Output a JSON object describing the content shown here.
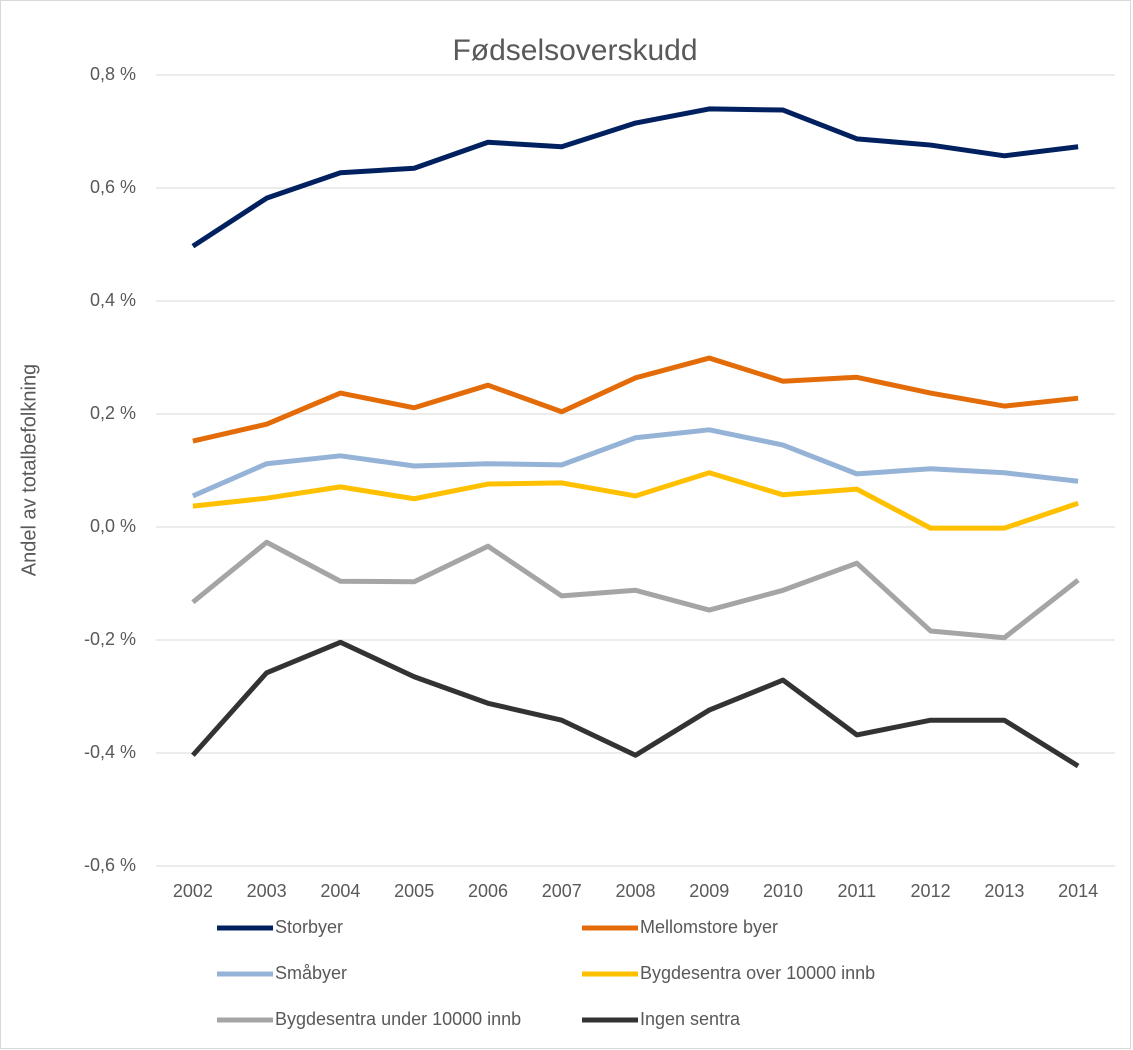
{
  "chart_data": {
    "type": "line",
    "title": "Fødselsoverskudd",
    "y_label": "Andel av totalbefolkning",
    "categories": [
      "2002",
      "2003",
      "2004",
      "2005",
      "2006",
      "2007",
      "2008",
      "2009",
      "2010",
      "2011",
      "2012",
      "2013",
      "2014"
    ],
    "series": [
      {
        "name": "Storbyer",
        "color": "#002060",
        "values": [
          0.497,
          0.582,
          0.627,
          0.635,
          0.681,
          0.673,
          0.715,
          0.74,
          0.738,
          0.687,
          0.676,
          0.657,
          0.673
        ]
      },
      {
        "name": "Mellomstore byer",
        "color": "#e36c09",
        "values": [
          0.152,
          0.182,
          0.237,
          0.211,
          0.251,
          0.204,
          0.264,
          0.299,
          0.258,
          0.265,
          0.237,
          0.214,
          0.228
        ]
      },
      {
        "name": "Småbyer",
        "color": "#95b3d7",
        "values": [
          0.055,
          0.112,
          0.126,
          0.108,
          0.112,
          0.11,
          0.158,
          0.172,
          0.145,
          0.094,
          0.103,
          0.096,
          0.081
        ]
      },
      {
        "name": "Bygdesentra over 10000 innb",
        "color": "#ffc000",
        "values": [
          0.037,
          0.051,
          0.071,
          0.05,
          0.076,
          0.078,
          0.055,
          0.096,
          0.057,
          0.067,
          -0.002,
          -0.002,
          0.042
        ]
      },
      {
        "name": "Bygdesentra under 10000 innb",
        "color": "#a5a5a5",
        "values": [
          -0.133,
          -0.027,
          -0.096,
          -0.097,
          -0.034,
          -0.122,
          -0.112,
          -0.147,
          -0.112,
          -0.064,
          -0.184,
          -0.196,
          -0.094
        ]
      },
      {
        "name": "Ingen sentra",
        "color": "#333333",
        "values": [
          -0.404,
          -0.258,
          -0.204,
          -0.265,
          -0.312,
          -0.342,
          -0.404,
          -0.324,
          -0.271,
          -0.368,
          -0.342,
          -0.342,
          -0.423
        ]
      }
    ],
    "ylim": [
      -0.6,
      0.8
    ],
    "yticks": [
      {
        "value": -0.6,
        "label": "-0,6 %"
      },
      {
        "value": -0.4,
        "label": "-0,4 %"
      },
      {
        "value": -0.2,
        "label": "-0,2 %"
      },
      {
        "value": 0,
        "label": "0,0 %"
      },
      {
        "value": 0.2,
        "label": "0,2 %"
      },
      {
        "value": 0.4,
        "label": "0,4 %"
      },
      {
        "value": 0.6,
        "label": "0,6 %"
      },
      {
        "value": 0.8,
        "label": "0,8 %"
      }
    ],
    "grid": true,
    "legend": "bottom"
  }
}
